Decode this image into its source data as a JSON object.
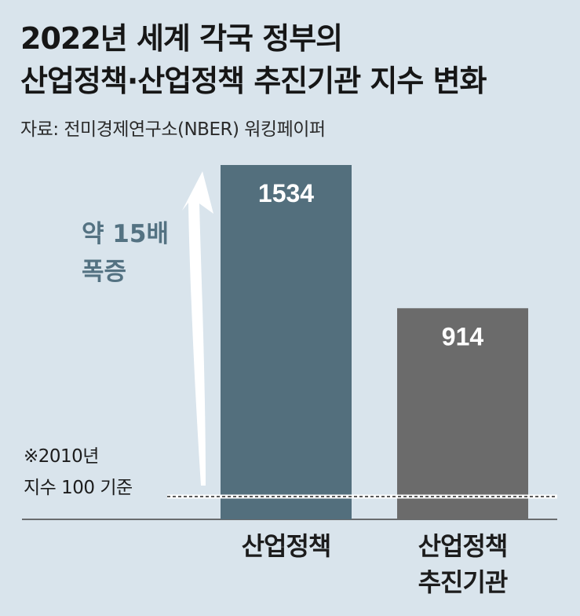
{
  "header": {
    "title_line1": "2022년 세계 각국 정부의",
    "title_line2": "산업정책·산업정책 추진기관 지수 변화",
    "source": "자료: 전미경제연구소(NBER) 워킹페이퍼"
  },
  "chart_data": {
    "type": "bar",
    "categories": [
      {
        "line1": "산업정책",
        "line2": ""
      },
      {
        "line1": "산업정책",
        "line2": "추진기관"
      }
    ],
    "values": [
      1534,
      914
    ],
    "value_labels": [
      "1534",
      "914"
    ],
    "colors": [
      "#536f7d",
      "#6b6b6b"
    ],
    "baseline_value": 100,
    "ylim": [
      0,
      1534
    ],
    "annotation": {
      "line1": "약 15배",
      "line2": "폭증"
    },
    "baseline_note": {
      "line1": "※2010년",
      "line2": "지수 100 기준"
    }
  }
}
